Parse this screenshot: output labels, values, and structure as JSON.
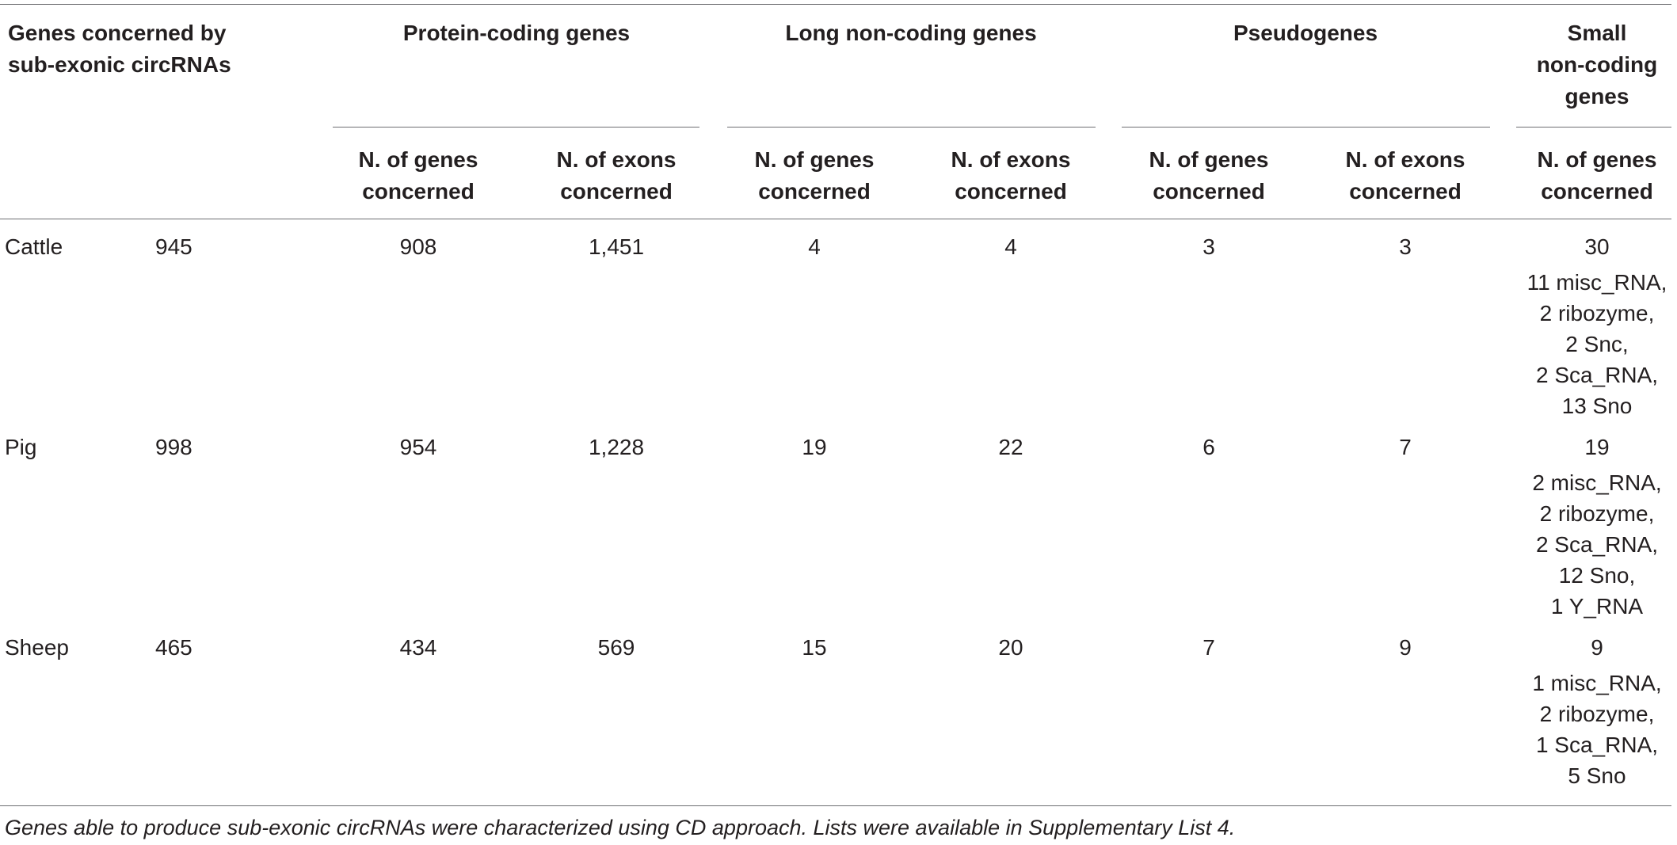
{
  "header": {
    "first_col_line1": "Genes concerned by",
    "first_col_line2": "sub-exonic circRNAs",
    "groups": {
      "protein_coding": "Protein-coding genes",
      "long_noncoding": "Long non-coding genes",
      "pseudogenes": "Pseudogenes",
      "small_noncoding_line1": "Small",
      "small_noncoding_line2": "non-coding",
      "small_noncoding_line3": "genes"
    },
    "sub": {
      "genes_line1": "N. of genes",
      "genes_line2": "concerned",
      "exons_line1": "N. of exons",
      "exons_line2": "concerned"
    }
  },
  "rows": [
    {
      "species": "Cattle",
      "total": "945",
      "pc_genes": "908",
      "pc_exons": "1,451",
      "lnc_genes": "4",
      "lnc_exons": "4",
      "pseudo_genes": "3",
      "pseudo_exons": "3",
      "small_total": "30",
      "small_detail": [
        "11 misc_RNA,",
        "2 ribozyme,",
        "2 Snc,",
        "2 Sca_RNA,",
        "13 Sno"
      ]
    },
    {
      "species": "Pig",
      "total": "998",
      "pc_genes": "954",
      "pc_exons": "1,228",
      "lnc_genes": "19",
      "lnc_exons": "22",
      "pseudo_genes": "6",
      "pseudo_exons": "7",
      "small_total": "19",
      "small_detail": [
        "2 misc_RNA,",
        "2 ribozyme,",
        "2 Sca_RNA,",
        "12 Sno,",
        "1 Y_RNA"
      ]
    },
    {
      "species": "Sheep",
      "total": "465",
      "pc_genes": "434",
      "pc_exons": "569",
      "lnc_genes": "15",
      "lnc_exons": "20",
      "pseudo_genes": "7",
      "pseudo_exons": "9",
      "small_total": "9",
      "small_detail": [
        "1 misc_RNA,",
        "2 ribozyme,",
        "1 Sca_RNA,",
        "5 Sno"
      ]
    }
  ],
  "footnote": "Genes able to produce sub-exonic circRNAs were characterized using CD approach. Lists were available in Supplementary List 4."
}
